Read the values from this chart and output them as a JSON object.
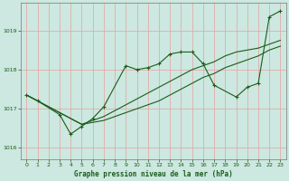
{
  "title": "Graphe pression niveau de la mer (hPa)",
  "bg_color": "#cce8e0",
  "plot_bg_color": "#cce8e0",
  "line_color": "#1a5c1a",
  "grid_color": "#e8a0a0",
  "axis_color": "#555555",
  "text_color": "#1a5c1a",
  "xlim": [
    -0.5,
    23.5
  ],
  "ylim": [
    1015.7,
    1019.7
  ],
  "yticks": [
    1016,
    1017,
    1018,
    1019
  ],
  "xticks": [
    0,
    1,
    2,
    3,
    4,
    5,
    6,
    7,
    8,
    9,
    10,
    11,
    12,
    13,
    14,
    15,
    16,
    17,
    18,
    19,
    20,
    21,
    22,
    23
  ],
  "series": [
    {
      "x": [
        0,
        1,
        2,
        3,
        4,
        5,
        6,
        7,
        8,
        9,
        10,
        11,
        12,
        13,
        14,
        15,
        16,
        17,
        18,
        19,
        20,
        21,
        22,
        23
      ],
      "y": [
        1017.35,
        1017.2,
        null,
        null,
        null,
        null,
        null,
        null,
        null,
        null,
        null,
        null,
        null,
        null,
        null,
        null,
        null,
        null,
        null,
        null,
        null,
        null,
        null,
        1019.5
      ]
    },
    {
      "x": [
        0,
        1,
        2,
        3,
        4,
        5,
        6,
        7,
        8,
        9,
        10,
        11,
        12,
        13,
        14,
        15,
        16,
        17,
        18,
        19,
        20,
        21,
        22,
        23
      ],
      "y": [
        1017.2,
        1016.9,
        1016.75,
        1016.35,
        1016.55,
        1016.75,
        1016.95,
        1017.35,
        1018.1,
        1018.0,
        1018.0,
        1018.15,
        1018.15,
        1018.35,
        1018.45,
        1018.45,
        1018.1,
        1017.6,
        1017.4,
        1017.3,
        1017.5,
        1017.7,
        1019.3,
        null
      ]
    },
    {
      "x": [
        0,
        1,
        2,
        3,
        4,
        5,
        6,
        7,
        8,
        9,
        10,
        11,
        12,
        13,
        14,
        15,
        16,
        17,
        18,
        19,
        20,
        21,
        22,
        23
      ],
      "y": [
        1017.2,
        1016.9,
        1016.75,
        1016.35,
        1016.55,
        1016.75,
        1016.95,
        1017.35,
        null,
        null,
        null,
        null,
        null,
        null,
        null,
        null,
        null,
        null,
        null,
        null,
        null,
        null,
        null,
        null
      ]
    }
  ],
  "series2": [
    [
      0,
      1017.35
    ],
    [
      1,
      1017.2
    ],
    [
      23,
      1019.5
    ]
  ],
  "main_series": [
    [
      0,
      1017.35
    ],
    [
      1,
      1017.2
    ],
    [
      3,
      1016.9
    ],
    [
      4,
      1016.35
    ],
    [
      5,
      1016.55
    ],
    [
      6,
      1016.8
    ],
    [
      7,
      1017.05
    ],
    [
      8,
      1017.35
    ],
    [
      9,
      1018.1
    ],
    [
      10,
      1018.0
    ],
    [
      11,
      1018.05
    ],
    [
      12,
      1018.15
    ],
    [
      13,
      1018.4
    ],
    [
      14,
      1018.45
    ],
    [
      15,
      1018.45
    ],
    [
      16,
      1018.15
    ],
    [
      17,
      1017.6
    ],
    [
      19,
      1017.3
    ],
    [
      20,
      1017.55
    ],
    [
      21,
      1017.65
    ],
    [
      22,
      1019.35
    ]
  ],
  "line1_x": [
    0,
    1,
    2,
    3,
    4,
    5,
    6,
    7,
    8,
    9,
    10,
    11,
    12,
    13,
    14,
    15,
    16,
    17,
    18,
    19,
    20,
    21,
    22,
    23
  ],
  "line1_y": [
    1017.35,
    1017.2,
    1017.05,
    1016.9,
    1016.75,
    1016.6,
    1016.65,
    1016.7,
    1016.8,
    1016.9,
    1017.0,
    1017.1,
    1017.2,
    1017.35,
    1017.5,
    1017.65,
    1017.8,
    1017.9,
    1018.05,
    1018.15,
    1018.25,
    1018.35,
    1018.5,
    1018.6
  ],
  "line2_x": [
    0,
    1,
    3,
    4,
    5,
    6,
    7,
    9,
    10,
    11,
    12,
    13,
    14,
    15,
    16,
    17,
    19,
    20,
    21,
    22,
    23
  ],
  "line2_y": [
    1017.35,
    1017.2,
    1016.85,
    1016.35,
    1016.55,
    1016.75,
    1017.05,
    1018.1,
    1018.0,
    1018.05,
    1018.15,
    1018.4,
    1018.45,
    1018.45,
    1018.15,
    1017.6,
    1017.3,
    1017.55,
    1017.65,
    1019.35,
    1019.5
  ],
  "line3_x": [
    0,
    1,
    2,
    3,
    4,
    5,
    6,
    7,
    8,
    9,
    10,
    11,
    12,
    13,
    14,
    15,
    16,
    17,
    18,
    19,
    20,
    21,
    22,
    23
  ],
  "line3_y": [
    1017.35,
    1017.2,
    1017.05,
    1016.9,
    1016.75,
    1016.6,
    1016.7,
    1016.8,
    1016.95,
    1017.1,
    1017.25,
    1017.4,
    1017.55,
    1017.7,
    1017.85,
    1018.0,
    1018.1,
    1018.2,
    1018.35,
    1018.45,
    1018.5,
    1018.55,
    1018.65,
    1018.75
  ]
}
